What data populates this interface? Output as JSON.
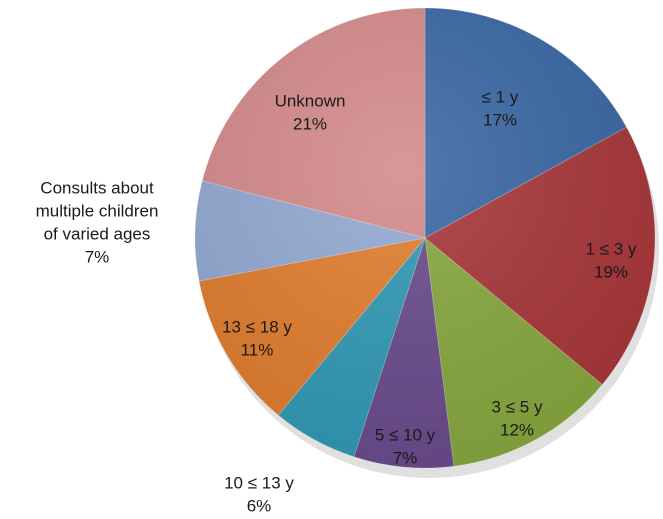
{
  "chart_data": {
    "type": "pie",
    "title": "",
    "start": "top",
    "direction": "clockwise",
    "slices": [
      {
        "label": "≤ 1 y",
        "value": 17,
        "display": "17%",
        "color": "#3a67a5"
      },
      {
        "label": "1  ≤ 3 y",
        "value": 19,
        "display": "19%",
        "color": "#a8363a"
      },
      {
        "label": "3 ≤ 5 y",
        "value": 12,
        "display": "12%",
        "color": "#87a83e"
      },
      {
        "label": "5  ≤ 10 y",
        "value": 7,
        "display": "7%",
        "color": "#6a4b8c"
      },
      {
        "label": "10  ≤ 13 y",
        "value": 6,
        "display": "6%",
        "color": "#3199b5"
      },
      {
        "label": "13 ≤ 18  y",
        "value": 11,
        "display": "11%",
        "color": "#e17d2e"
      },
      {
        "label": "Consults about multiple children of varied ages",
        "label_lines": [
          "Consults about",
          "multiple children",
          "of varied ages"
        ],
        "value": 7,
        "display": "7%",
        "color": "#93a9d3"
      },
      {
        "label": "Unknown",
        "value": 21,
        "display": "21%",
        "color": "#d48a8a"
      }
    ]
  }
}
